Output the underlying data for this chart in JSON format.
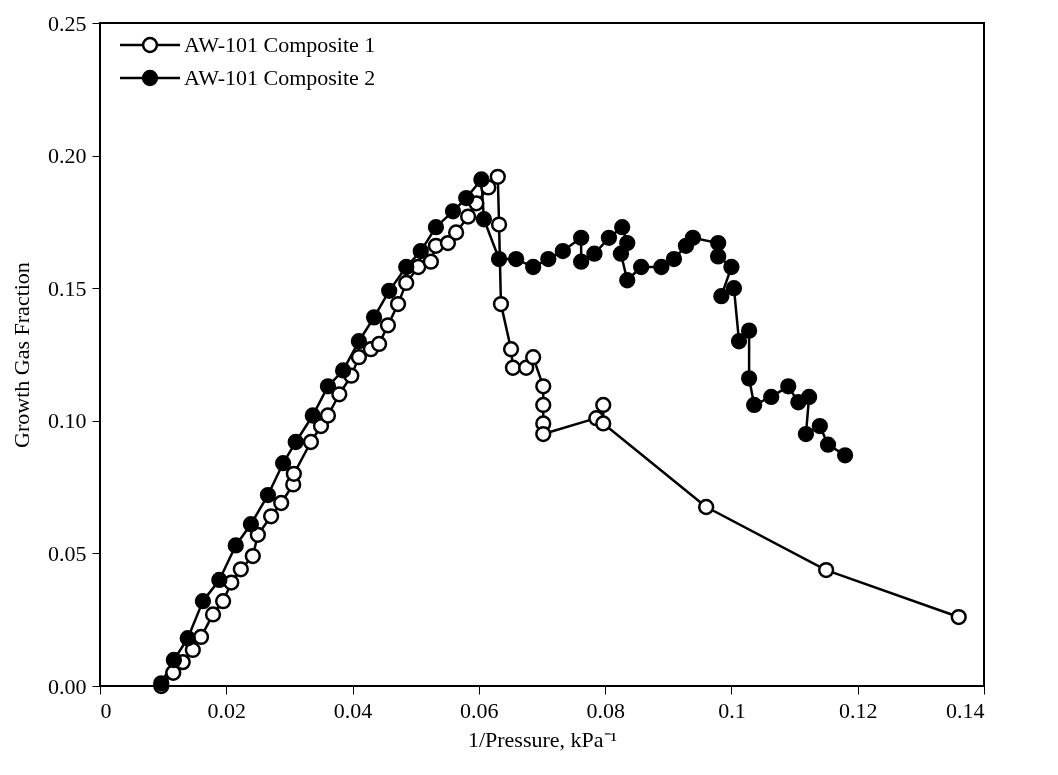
{
  "chart_data": {
    "type": "line",
    "xlabel": "1/Pressure, kPa⁻¹",
    "ylabel": "Growth Gas Fraction",
    "xlim": [
      0,
      0.14
    ],
    "xticks": [
      0,
      0.02,
      0.04,
      0.06,
      0.08,
      {
        "value": 0.1,
        "label": "0.1"
      },
      0.12,
      0.14
    ],
    "ylim": [
      0,
      0.25
    ],
    "yticks": [
      {
        "value": 0,
        "label": "0.00"
      },
      0.05,
      {
        "value": 0.1,
        "label": "0.10"
      },
      0.15,
      {
        "value": 0.2,
        "label": "0.20"
      },
      0.25
    ],
    "grid": false,
    "legend": "top left",
    "marker": "circle",
    "line_style": "solid",
    "series": [
      {
        "name": "AW-101 Composite 1",
        "color": "#000000",
        "x": [
          0.0097,
          0.0116,
          0.0131,
          0.0147,
          0.016,
          0.0179,
          0.0195,
          0.0208,
          0.0223,
          0.0242,
          0.025,
          0.0271,
          0.0287,
          0.0306,
          0.0307,
          0.0334,
          0.035,
          0.0361,
          0.0379,
          0.0398,
          0.041,
          0.0429,
          0.0442,
          0.0456,
          0.0472,
          0.0485,
          0.0504,
          0.0524,
          0.0532,
          0.0551,
          0.0564,
          0.0583,
          0.0596,
          0.0615,
          0.063,
          0.0632,
          0.0635,
          0.0651,
          0.0654,
          0.0675,
          0.0686,
          0.0702,
          0.0702,
          0.0702,
          0.0702,
          0.0786,
          0.0797,
          0.0797,
          0.096,
          0.115,
          0.136
        ],
        "values": [
          0,
          0.005,
          0.009,
          0.0136,
          0.0185,
          0.027,
          0.032,
          0.039,
          0.044,
          0.049,
          0.057,
          0.064,
          0.069,
          0.076,
          0.08,
          0.092,
          0.098,
          0.102,
          0.11,
          0.117,
          0.124,
          0.127,
          0.129,
          0.136,
          0.144,
          0.152,
          0.158,
          0.16,
          0.166,
          0.167,
          0.171,
          0.177,
          0.182,
          0.188,
          0.192,
          0.174,
          0.144,
          0.127,
          0.12,
          0.12,
          0.124,
          0.113,
          0.106,
          0.099,
          0.095,
          0.101,
          0.106,
          0.099,
          0.0675,
          0.0437,
          0.026
        ]
      },
      {
        "name": "AW-101 Composite 2",
        "color": "#000000",
        "x": [
          0.0097,
          0.0117,
          0.0139,
          0.0163,
          0.0189,
          0.0215,
          0.0239,
          0.0266,
          0.029,
          0.031,
          0.0337,
          0.0361,
          0.0385,
          0.041,
          0.0434,
          0.0458,
          0.0485,
          0.0508,
          0.0532,
          0.0559,
          0.058,
          0.0604,
          0.0608,
          0.0632,
          0.0659,
          0.0686,
          0.071,
          0.0733,
          0.0762,
          0.0762,
          0.0783,
          0.0806,
          0.0827,
          0.0835,
          0.0825,
          0.0835,
          0.0857,
          0.0889,
          0.0909,
          0.0928,
          0.0939,
          0.0979,
          0.0979,
          0.1,
          0.0984,
          0.1004,
          0.1012,
          0.1028,
          0.1028,
          0.1036,
          0.1063,
          0.109,
          0.1106,
          0.1123,
          0.1118,
          0.114,
          0.1153,
          0.118
        ],
        "values": [
          0.001,
          0.0098,
          0.018,
          0.032,
          0.04,
          0.053,
          0.061,
          0.072,
          0.084,
          0.092,
          0.102,
          0.113,
          0.119,
          0.13,
          0.139,
          0.149,
          0.158,
          0.164,
          0.173,
          0.179,
          0.184,
          0.191,
          0.176,
          0.161,
          0.161,
          0.158,
          0.161,
          0.164,
          0.169,
          0.16,
          0.163,
          0.169,
          0.173,
          0.167,
          0.163,
          0.153,
          0.158,
          0.158,
          0.161,
          0.166,
          0.169,
          0.167,
          0.162,
          0.158,
          0.147,
          0.15,
          0.13,
          0.134,
          0.116,
          0.106,
          0.109,
          0.113,
          0.107,
          0.109,
          0.095,
          0.098,
          0.091,
          0.087
        ]
      }
    ]
  }
}
